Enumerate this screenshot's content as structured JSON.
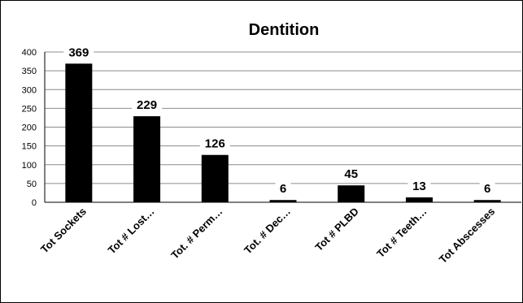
{
  "chart_data": {
    "type": "bar",
    "title": "Dentition",
    "xlabel": "",
    "ylabel": "",
    "categories": [
      "Tot Sockets",
      "Tot # Lost…",
      "Tot. # Perm…",
      "Tot. # Dec…",
      "Tot # PLBD",
      "Tot # Teeth…",
      "Tot Abscesses"
    ],
    "values": [
      369,
      229,
      126,
      6,
      45,
      13,
      6
    ],
    "ylim": [
      0,
      400
    ],
    "yticks": [
      0,
      50,
      100,
      150,
      200,
      250,
      300,
      350,
      400
    ],
    "grid": true,
    "legend": "none",
    "bar_color": "#000000",
    "data_labels": true
  }
}
